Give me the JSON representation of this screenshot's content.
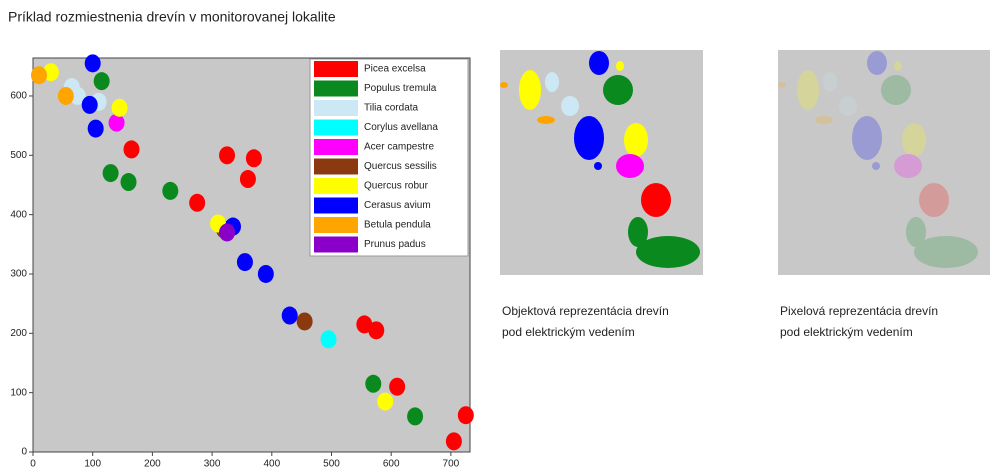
{
  "chart_data": {
    "type": "scatter",
    "title": "Príklad rozmiestnenia drevín v monitorovanej lokalite",
    "xlim": [
      0,
      732
    ],
    "ylim": [
      0,
      664
    ],
    "xticks": [
      0,
      100,
      200,
      300,
      400,
      500,
      600,
      700
    ],
    "yticks": [
      0,
      100,
      200,
      300,
      400,
      500,
      600
    ],
    "legend": "upper right",
    "series": [
      {
        "name": "Picea excelsa",
        "color": "#ff0000",
        "x": [
          165,
          325,
          370,
          360,
          275,
          555,
          575,
          610,
          705,
          725
        ],
        "values": [
          510,
          500,
          495,
          460,
          420,
          215,
          205,
          110,
          18,
          62
        ]
      },
      {
        "name": "Populus tremula",
        "color": "#0a8a1e",
        "x": [
          115,
          130,
          160,
          230,
          570,
          640
        ],
        "values": [
          625,
          470,
          455,
          440,
          115,
          60
        ]
      },
      {
        "name": "Tilia cordata",
        "color": "#cce8f4",
        "x": [
          65,
          75,
          110
        ],
        "values": [
          615,
          600,
          590
        ]
      },
      {
        "name": "Corylus avellana",
        "color": "#00ffff",
        "x": [
          495
        ],
        "values": [
          190
        ]
      },
      {
        "name": "Acer campestre",
        "color": "#ff00ff",
        "x": [
          140
        ],
        "values": [
          555
        ]
      },
      {
        "name": "Quercus sessilis",
        "color": "#8b3a0f",
        "x": [
          320,
          455
        ],
        "values": [
          375,
          220
        ]
      },
      {
        "name": "Quercus robur",
        "color": "#ffff00",
        "x": [
          30,
          145,
          310,
          590
        ],
        "values": [
          640,
          580,
          385,
          85
        ]
      },
      {
        "name": "Cerasus avium",
        "color": "#0000ff",
        "x": [
          100,
          95,
          105,
          335,
          355,
          390,
          430
        ],
        "values": [
          655,
          585,
          545,
          380,
          320,
          300,
          230
        ]
      },
      {
        "name": "Betula pendula",
        "color": "#ffa500",
        "x": [
          10,
          55
        ],
        "values": [
          635,
          600
        ]
      },
      {
        "name": "Prunus padus",
        "color": "#8a00c8",
        "x": [
          325
        ],
        "values": [
          370
        ]
      }
    ]
  },
  "panels": [
    {
      "caption": [
        "Objektová reprezentácia drevín",
        "pod elektrickým vedením"
      ]
    },
    {
      "caption": [
        "Pixelová reprezentácia drevín",
        "pod elektrickým vedením"
      ]
    }
  ]
}
